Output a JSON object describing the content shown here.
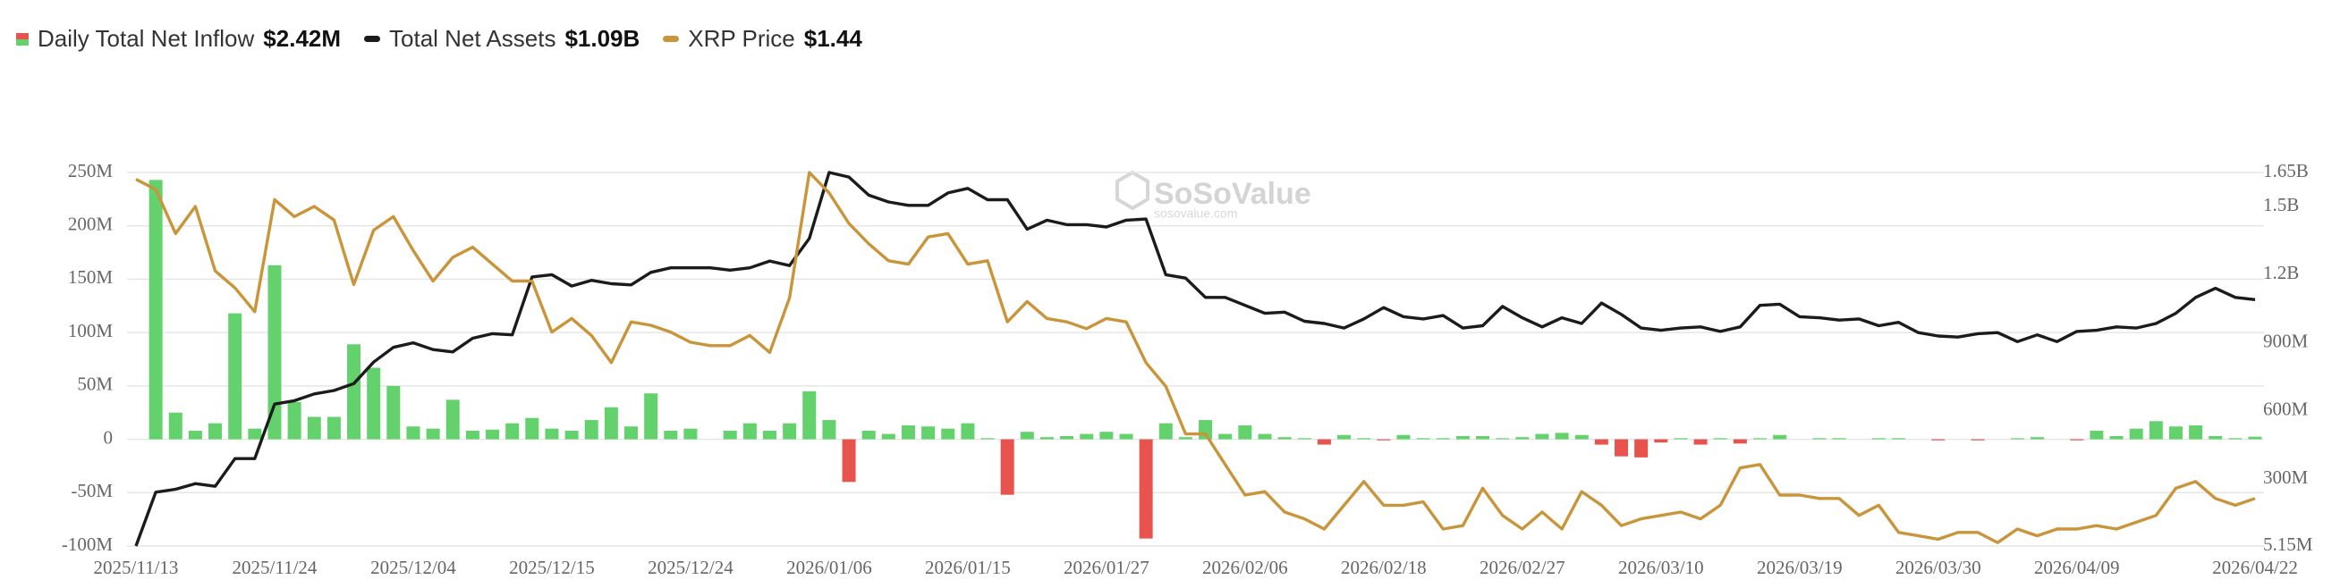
{
  "chart_data": {
    "type": "bar-line-combo",
    "watermark": {
      "name": "SoSoValue",
      "site": "sosovalue.com"
    },
    "categories": [
      "2025/11/13",
      null,
      null,
      null,
      null,
      null,
      null,
      "2025/11/24",
      null,
      null,
      null,
      null,
      null,
      null,
      "2025/12/04",
      null,
      null,
      null,
      null,
      null,
      null,
      "2025/12/15",
      null,
      null,
      null,
      null,
      null,
      null,
      "2025/12/24",
      null,
      null,
      null,
      null,
      null,
      null,
      "2026/01/06",
      null,
      null,
      null,
      null,
      null,
      null,
      "2026/01/15",
      null,
      null,
      null,
      null,
      null,
      null,
      "2026/01/27",
      null,
      null,
      null,
      null,
      null,
      null,
      "2026/02/06",
      null,
      null,
      null,
      null,
      null,
      null,
      "2026/02/18",
      null,
      null,
      null,
      null,
      null,
      null,
      "2026/02/27",
      null,
      null,
      null,
      null,
      null,
      null,
      "2026/03/10",
      null,
      null,
      null,
      null,
      null,
      null,
      "2026/03/19",
      null,
      null,
      null,
      null,
      null,
      null,
      "2026/03/30",
      null,
      null,
      null,
      null,
      null,
      null,
      "2026/04/09",
      null,
      null,
      null,
      null,
      null,
      null,
      null,
      null,
      "2026/04/22"
    ],
    "series": [
      {
        "name": "Daily Total Net Inflow",
        "current": "$2.42M",
        "type": "bar",
        "color": "#63d16c",
        "negative_color": "#e9534d",
        "values": [
          null,
          243,
          25,
          8,
          15,
          118,
          10,
          163,
          35,
          21,
          21,
          89,
          67,
          50,
          12,
          10,
          37,
          8,
          9,
          15,
          20,
          10,
          8,
          18,
          30,
          12,
          43,
          8,
          10,
          0,
          8,
          15,
          8,
          15,
          45,
          18,
          -40,
          8,
          5,
          13,
          12,
          10,
          15,
          1,
          -52,
          7,
          2,
          3,
          5,
          7,
          5,
          -93,
          15,
          2,
          18,
          5,
          13,
          5,
          2,
          1,
          -5,
          4,
          1,
          -1,
          4,
          1,
          1,
          3,
          3,
          1,
          2,
          5,
          6,
          4,
          -5,
          -16,
          -17,
          -3,
          1,
          -5,
          1,
          -4,
          1,
          4,
          0,
          1,
          1,
          0,
          1,
          1,
          0,
          -1,
          0,
          -1,
          0,
          1,
          2,
          0,
          -1,
          8,
          3,
          10,
          17,
          12,
          13,
          3,
          1,
          2.42
        ]
      },
      {
        "name": "Total Net Assets",
        "current": "$1.09B",
        "type": "line",
        "axis": "y2",
        "color": "#1b1b1b",
        "values": [
          5.15,
          242,
          255,
          280,
          268,
          390,
          390,
          630,
          645,
          675,
          690,
          720,
          815,
          880,
          900,
          870,
          860,
          920,
          940,
          935,
          1190,
          1200,
          1150,
          1175,
          1160,
          1155,
          1210,
          1230,
          1230,
          1230,
          1220,
          1230,
          1260,
          1240,
          1360,
          1650,
          1630,
          1550,
          1520,
          1505,
          1505,
          1560,
          1580,
          1530,
          1530,
          1400,
          1440,
          1420,
          1420,
          1410,
          1440,
          1445,
          1200,
          1185,
          1100,
          1100,
          1065,
          1030,
          1035,
          995,
          985,
          965,
          1005,
          1055,
          1015,
          1005,
          1020,
          965,
          975,
          1060,
          1010,
          970,
          1010,
          985,
          1075,
          1025,
          965,
          955,
          965,
          970,
          950,
          970,
          1065,
          1070,
          1015,
          1010,
          1000,
          1005,
          975,
          990,
          945,
          930,
          925,
          940,
          945,
          905,
          935,
          905,
          950,
          955,
          970,
          965,
          985,
          1030,
          1100,
          1140,
          1100,
          1090
        ]
      },
      {
        "name": "XRP Price",
        "current": "$1.44",
        "type": "line",
        "axis": "y3",
        "color": "#c8953a",
        "values": [
          2.38,
          2.35,
          2.22,
          2.3,
          2.11,
          2.06,
          1.99,
          2.32,
          2.27,
          2.3,
          2.26,
          2.07,
          2.23,
          2.27,
          2.17,
          2.08,
          2.15,
          2.18,
          2.13,
          2.08,
          2.08,
          1.93,
          1.97,
          1.92,
          1.84,
          1.96,
          1.95,
          1.93,
          1.9,
          1.89,
          1.89,
          1.92,
          1.87,
          2.03,
          2.4,
          2.34,
          2.25,
          2.19,
          2.14,
          2.13,
          2.21,
          2.22,
          2.13,
          2.14,
          1.96,
          2.02,
          1.97,
          1.96,
          1.94,
          1.97,
          1.96,
          1.84,
          1.77,
          1.63,
          1.63,
          1.54,
          1.45,
          1.46,
          1.4,
          1.38,
          1.35,
          1.42,
          1.49,
          1.42,
          1.42,
          1.43,
          1.35,
          1.36,
          1.47,
          1.39,
          1.35,
          1.4,
          1.35,
          1.46,
          1.42,
          1.36,
          1.38,
          1.39,
          1.4,
          1.38,
          1.42,
          1.53,
          1.54,
          1.45,
          1.45,
          1.44,
          1.44,
          1.39,
          1.42,
          1.34,
          1.33,
          1.32,
          1.34,
          1.34,
          1.31,
          1.35,
          1.33,
          1.35,
          1.35,
          1.36,
          1.35,
          1.37,
          1.39,
          1.47,
          1.49,
          1.44,
          1.42,
          1.44
        ]
      }
    ],
    "ylim": [
      -100,
      250
    ],
    "yticks": [
      {
        "value": -100,
        "label": "-100M"
      },
      {
        "value": -50,
        "label": "-50M"
      },
      0,
      {
        "value": 50,
        "label": "50M"
      },
      {
        "value": 100,
        "label": "100M"
      },
      {
        "value": 150,
        "label": "150M"
      },
      {
        "value": 200,
        "label": "200M"
      },
      {
        "value": 250,
        "label": "250M"
      }
    ],
    "y2lim": [
      5.15,
      1650
    ],
    "y2ticks": [
      {
        "value": 5.15,
        "label": "5.15M"
      },
      {
        "value": 300,
        "label": "300M"
      },
      {
        "value": 600,
        "label": "600M"
      },
      {
        "value": 900,
        "label": "900M"
      },
      {
        "value": 1200,
        "label": "1.2B"
      },
      {
        "value": 1500,
        "label": "1.5B"
      },
      {
        "value": 1650,
        "label": "1.65B"
      }
    ],
    "y3lim": [
      1.3,
      2.4
    ],
    "grid": true
  }
}
